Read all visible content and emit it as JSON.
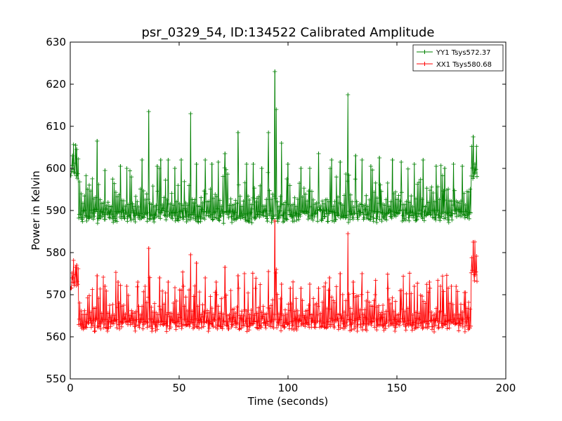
{
  "chart_data": {
    "type": "line",
    "title": "psr_0329_54, ID:134522 Calibrated Amplitude",
    "xlabel": "Time (seconds)",
    "ylabel": "Power in Kelvin",
    "xlim": [
      0,
      200
    ],
    "ylim": [
      550,
      630
    ],
    "xticks": [
      0,
      50,
      100,
      150,
      200
    ],
    "yticks": [
      550,
      560,
      570,
      580,
      590,
      600,
      610,
      620,
      630
    ],
    "grid": false,
    "legend_position": "top-right",
    "marker": "plus",
    "series": [
      {
        "name": "YY1 Tsys572.37",
        "color": "#008000",
        "x_range": [
          0.3,
          186.8
        ],
        "baseline": 588.8,
        "pulse_period_s": 0.714,
        "segments": [
          {
            "x": [
              0.3,
              3.8
            ],
            "y_level": 598.5
          },
          {
            "x": [
              4.0,
              183.9
            ],
            "y_level": 588.8
          },
          {
            "x": [
              184.0,
              186.8
            ],
            "y_level": 599.0
          }
        ],
        "peaks": [
          {
            "x": 1.0,
            "y": 603.0
          },
          {
            "x": 2.5,
            "y": 605.5
          },
          {
            "x": 3.0,
            "y": 604.5
          },
          {
            "x": 12.4,
            "y": 606.5
          },
          {
            "x": 16.0,
            "y": 599.5
          },
          {
            "x": 23.0,
            "y": 600.5
          },
          {
            "x": 26.0,
            "y": 600.0
          },
          {
            "x": 33.0,
            "y": 602.0
          },
          {
            "x": 36.0,
            "y": 613.5
          },
          {
            "x": 40.0,
            "y": 600.5
          },
          {
            "x": 41.5,
            "y": 602.0
          },
          {
            "x": 45.0,
            "y": 602.0
          },
          {
            "x": 48.0,
            "y": 600.0
          },
          {
            "x": 51.0,
            "y": 602.0
          },
          {
            "x": 55.3,
            "y": 613.0
          },
          {
            "x": 58.0,
            "y": 601.0
          },
          {
            "x": 62.0,
            "y": 602.0
          },
          {
            "x": 65.0,
            "y": 601.0
          },
          {
            "x": 68.0,
            "y": 601.5
          },
          {
            "x": 71.0,
            "y": 603.5
          },
          {
            "x": 77.0,
            "y": 608.5
          },
          {
            "x": 81.0,
            "y": 601.0
          },
          {
            "x": 84.0,
            "y": 601.0
          },
          {
            "x": 88.0,
            "y": 600.0
          },
          {
            "x": 91.0,
            "y": 608.5
          },
          {
            "x": 94.0,
            "y": 623.0
          },
          {
            "x": 94.6,
            "y": 614.0
          },
          {
            "x": 97.0,
            "y": 606.0
          },
          {
            "x": 100.0,
            "y": 601.0
          },
          {
            "x": 106.0,
            "y": 600.0
          },
          {
            "x": 110.0,
            "y": 600.0
          },
          {
            "x": 114.0,
            "y": 603.5
          },
          {
            "x": 120.0,
            "y": 602.0
          },
          {
            "x": 124.0,
            "y": 601.5
          },
          {
            "x": 127.5,
            "y": 617.5
          },
          {
            "x": 131.0,
            "y": 603.0
          },
          {
            "x": 134.0,
            "y": 602.0
          },
          {
            "x": 138.0,
            "y": 600.5
          },
          {
            "x": 142.0,
            "y": 602.5
          },
          {
            "x": 148.0,
            "y": 602.0
          },
          {
            "x": 152.0,
            "y": 601.5
          },
          {
            "x": 158.0,
            "y": 601.0
          },
          {
            "x": 162.0,
            "y": 602.0
          },
          {
            "x": 168.0,
            "y": 600.5
          },
          {
            "x": 172.0,
            "y": 600.0
          },
          {
            "x": 176.0,
            "y": 601.0
          },
          {
            "x": 180.0,
            "y": 600.5
          },
          {
            "x": 185.0,
            "y": 607.5
          }
        ]
      },
      {
        "name": "XX1 Tsys580.68",
        "color": "#ff0000",
        "x_range": [
          0.3,
          186.8
        ],
        "baseline": 563.0,
        "pulse_period_s": 0.714,
        "segments": [
          {
            "x": [
              0.3,
              3.8
            ],
            "y_level": 572.5
          },
          {
            "x": [
              4.0,
              183.9
            ],
            "y_level": 563.0
          },
          {
            "x": [
              184.0,
              186.8
            ],
            "y_level": 574.5
          }
        ],
        "peaks": [
          {
            "x": 1.0,
            "y": 574.0
          },
          {
            "x": 2.5,
            "y": 576.5
          },
          {
            "x": 3.0,
            "y": 577.0
          },
          {
            "x": 12.4,
            "y": 574.5
          },
          {
            "x": 16.0,
            "y": 572.0
          },
          {
            "x": 22.0,
            "y": 573.0
          },
          {
            "x": 26.0,
            "y": 572.0
          },
          {
            "x": 31.0,
            "y": 573.0
          },
          {
            "x": 36.0,
            "y": 581.0
          },
          {
            "x": 41.0,
            "y": 574.0
          },
          {
            "x": 45.0,
            "y": 573.0
          },
          {
            "x": 52.0,
            "y": 572.0
          },
          {
            "x": 55.3,
            "y": 579.5
          },
          {
            "x": 58.0,
            "y": 577.5
          },
          {
            "x": 62.0,
            "y": 574.0
          },
          {
            "x": 67.0,
            "y": 573.0
          },
          {
            "x": 71.0,
            "y": 576.5
          },
          {
            "x": 77.0,
            "y": 574.5
          },
          {
            "x": 80.0,
            "y": 575.0
          },
          {
            "x": 85.0,
            "y": 571.5
          },
          {
            "x": 91.0,
            "y": 575.5
          },
          {
            "x": 94.0,
            "y": 587.5
          },
          {
            "x": 94.6,
            "y": 576.0
          },
          {
            "x": 97.0,
            "y": 572.5
          },
          {
            "x": 101.0,
            "y": 571.5
          },
          {
            "x": 106.0,
            "y": 571.5
          },
          {
            "x": 110.0,
            "y": 572.5
          },
          {
            "x": 114.0,
            "y": 571.5
          },
          {
            "x": 119.0,
            "y": 574.0
          },
          {
            "x": 124.0,
            "y": 575.0
          },
          {
            "x": 127.5,
            "y": 584.5
          },
          {
            "x": 130.0,
            "y": 573.0
          },
          {
            "x": 134.0,
            "y": 575.0
          },
          {
            "x": 140.0,
            "y": 570.0
          },
          {
            "x": 146.0,
            "y": 571.5
          },
          {
            "x": 152.0,
            "y": 571.0
          },
          {
            "x": 158.0,
            "y": 572.0
          },
          {
            "x": 165.0,
            "y": 573.0
          },
          {
            "x": 170.0,
            "y": 572.0
          },
          {
            "x": 175.0,
            "y": 572.0
          },
          {
            "x": 181.0,
            "y": 570.5
          },
          {
            "x": 185.0,
            "y": 582.5
          }
        ]
      }
    ]
  }
}
